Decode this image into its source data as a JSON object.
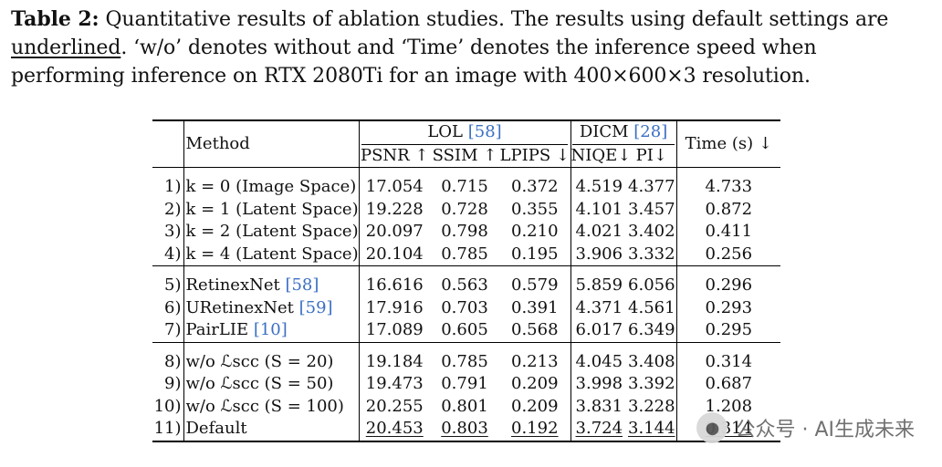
{
  "caption": {
    "label": "Table 2:",
    "part1": " Quantitative results of ablation studies. The results using default settings are ",
    "underlined_word": "underlined",
    "part2": ". ‘w/o’ denotes without and ‘Time’ denotes the inference speed when performing inference on RTX 2080Ti for an image with 400×600×3 resolution."
  },
  "table": {
    "header": {
      "method": "Method",
      "lol": "LOL ",
      "lol_cite": "[58]",
      "dicm": "DICM ",
      "dicm_cite": "[28]",
      "time": "Time (s) ↓",
      "psnr": "PSNR ↑",
      "ssim": "SSIM ↑",
      "lpips": "LPIPS ↓",
      "niqe": "NIQE↓",
      "pi": "PI↓"
    },
    "groups": [
      [
        {
          "idx": "1)",
          "method": "k = 0 (Image Space)",
          "cite": "",
          "psnr": "17.054",
          "ssim": "0.715",
          "lpips": "0.372",
          "niqe": "4.519",
          "pi": "4.377",
          "time": "4.733"
        },
        {
          "idx": "2)",
          "method": "k = 1 (Latent Space)",
          "cite": "",
          "psnr": "19.228",
          "ssim": "0.728",
          "lpips": "0.355",
          "niqe": "4.101",
          "pi": "3.457",
          "time": "0.872"
        },
        {
          "idx": "3)",
          "method": "k = 2 (Latent Space)",
          "cite": "",
          "psnr": "20.097",
          "ssim": "0.798",
          "lpips": "0.210",
          "niqe": "4.021",
          "pi": "3.402",
          "time": "0.411"
        },
        {
          "idx": "4)",
          "method": "k = 4 (Latent Space)",
          "cite": "",
          "psnr": "20.104",
          "ssim": "0.785",
          "lpips": "0.195",
          "niqe": "3.906",
          "pi": "3.332",
          "time": "0.256"
        }
      ],
      [
        {
          "idx": "5)",
          "method": "RetinexNet ",
          "cite": "[58]",
          "psnr": "16.616",
          "ssim": "0.563",
          "lpips": "0.579",
          "niqe": "5.859",
          "pi": "6.056",
          "time": "0.296"
        },
        {
          "idx": "6)",
          "method": "URetinexNet ",
          "cite": "[59]",
          "psnr": "17.916",
          "ssim": "0.703",
          "lpips": "0.391",
          "niqe": "4.371",
          "pi": "4.561",
          "time": "0.293"
        },
        {
          "idx": "7)",
          "method": "PairLIE ",
          "cite": "[10]",
          "psnr": "17.089",
          "ssim": "0.605",
          "lpips": "0.568",
          "niqe": "6.017",
          "pi": "6.349",
          "time": "0.295"
        }
      ],
      [
        {
          "idx": "8)",
          "method": "w/o ℒscc (S = 20)",
          "cite": "",
          "psnr": "19.184",
          "ssim": "0.785",
          "lpips": "0.213",
          "niqe": "4.045",
          "pi": "3.408",
          "time": "0.314"
        },
        {
          "idx": "9)",
          "method": "w/o ℒscc (S = 50)",
          "cite": "",
          "psnr": "19.473",
          "ssim": "0.791",
          "lpips": "0.209",
          "niqe": "3.998",
          "pi": "3.392",
          "time": "0.687"
        },
        {
          "idx": "10)",
          "method": "w/o ℒscc (S = 100)",
          "cite": "",
          "psnr": "20.255",
          "ssim": "0.801",
          "lpips": "0.209",
          "niqe": "3.831",
          "pi": "3.228",
          "time": "1.208"
        },
        {
          "idx": "11)",
          "method": "Default",
          "cite": "",
          "psnr": "20.453",
          "ssim": "0.803",
          "lpips": "0.192",
          "niqe": "3.724",
          "pi": "3.144",
          "time": "0.314",
          "underline": true
        }
      ]
    ]
  },
  "watermark": {
    "icon": "wechat-icon",
    "text": "公众号 · AI生成未来"
  }
}
